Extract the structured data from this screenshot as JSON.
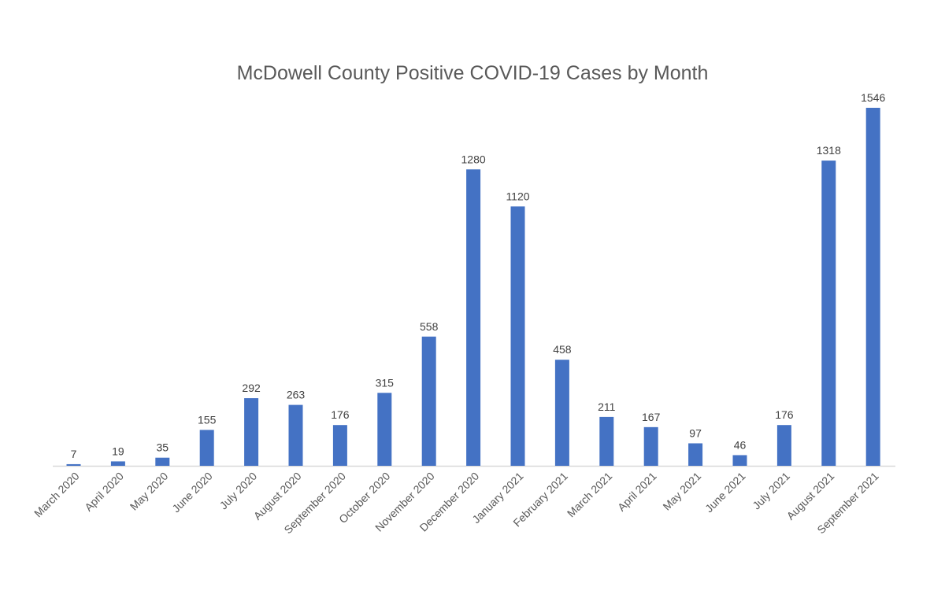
{
  "chart_data": {
    "type": "bar",
    "title": "McDowell County Positive COVID-19 Cases by Month",
    "xlabel": "",
    "ylabel": "",
    "ylim": [
      0,
      1546
    ],
    "grid": false,
    "legend": "none",
    "bar_color": "#4472C4",
    "categories": [
      "March 2020",
      "April 2020",
      "May 2020",
      "June 2020",
      "July 2020",
      "August 2020",
      "September 2020",
      "October 2020",
      "November 2020",
      "December 2020",
      "January 2021",
      "February 2021",
      "March 2021",
      "April 2021",
      "May 2021",
      "June 2021",
      "July 2021",
      "August 2021",
      "September 2021"
    ],
    "values": [
      7,
      19,
      35,
      155,
      292,
      263,
      176,
      315,
      558,
      1280,
      1120,
      458,
      211,
      167,
      97,
      46,
      176,
      1318,
      1546
    ]
  }
}
